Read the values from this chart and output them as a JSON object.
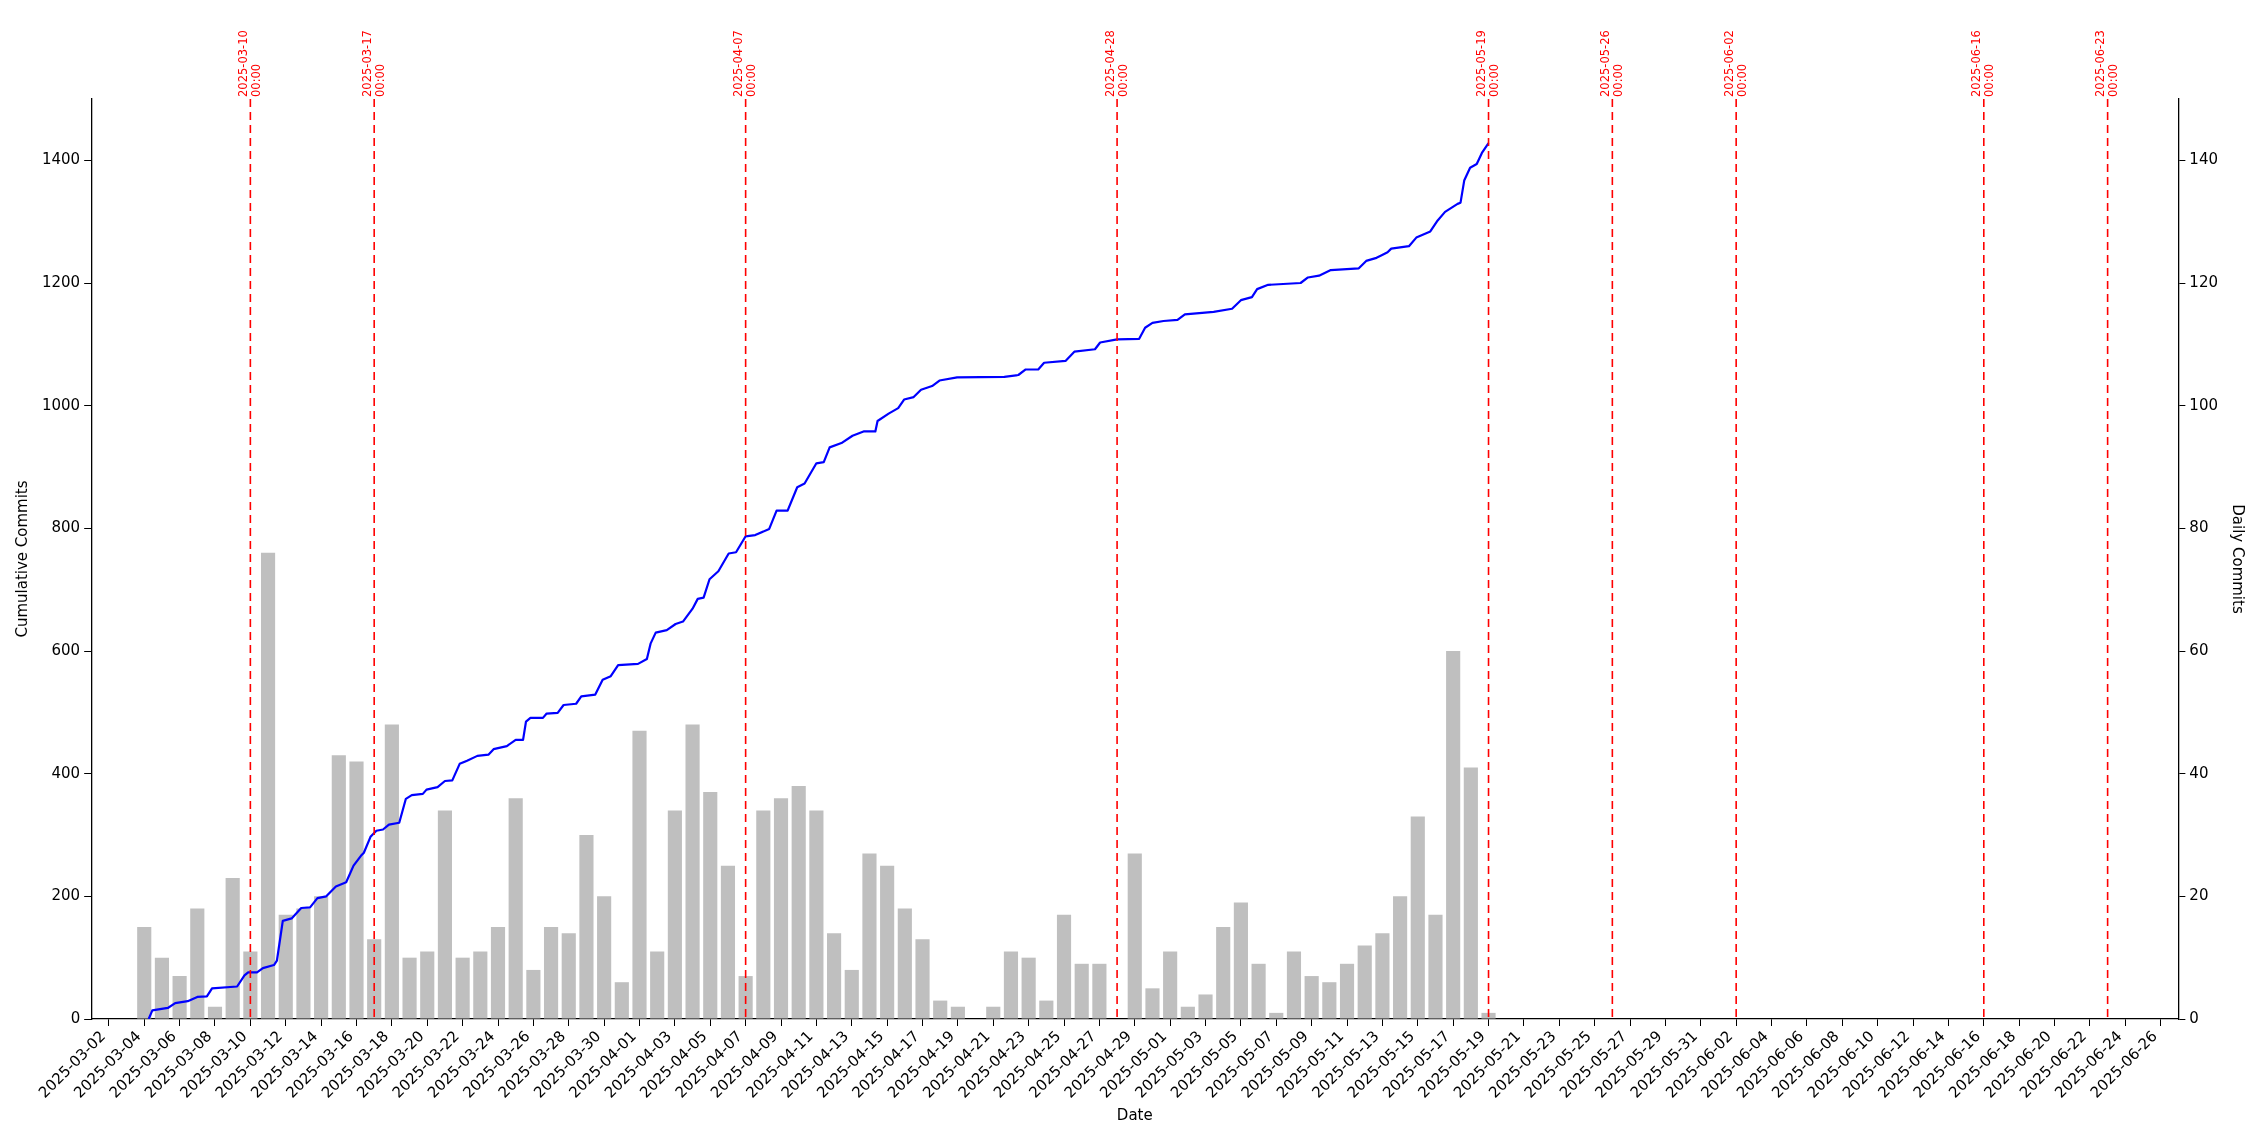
{
  "chart_data": {
    "type": "bar",
    "xlabel": "Date",
    "ylabel": "Cumulative Commits",
    "y2label": "Daily Commits",
    "xlim": [
      "2025-03-01",
      "2025-06-27"
    ],
    "xticks": [
      "2025-03-02",
      "2025-03-04",
      "2025-03-06",
      "2025-03-08",
      "2025-03-10",
      "2025-03-12",
      "2025-03-14",
      "2025-03-16",
      "2025-03-18",
      "2025-03-20",
      "2025-03-22",
      "2025-03-24",
      "2025-03-26",
      "2025-03-28",
      "2025-03-30",
      "2025-04-01",
      "2025-04-03",
      "2025-04-05",
      "2025-04-07",
      "2025-04-09",
      "2025-04-11",
      "2025-04-13",
      "2025-04-15",
      "2025-04-17",
      "2025-04-19",
      "2025-04-21",
      "2025-04-23",
      "2025-04-25",
      "2025-04-27",
      "2025-04-29",
      "2025-05-01",
      "2025-05-03",
      "2025-05-05",
      "2025-05-07",
      "2025-05-09",
      "2025-05-11",
      "2025-05-13",
      "2025-05-15",
      "2025-05-17",
      "2025-05-19",
      "2025-05-21",
      "2025-05-23",
      "2025-05-25",
      "2025-05-27",
      "2025-05-29",
      "2025-05-31",
      "2025-06-02",
      "2025-06-04",
      "2025-06-06",
      "2025-06-08",
      "2025-06-10",
      "2025-06-12",
      "2025-06-14",
      "2025-06-16",
      "2025-06-18",
      "2025-06-20",
      "2025-06-22",
      "2025-06-24",
      "2025-06-26"
    ],
    "ylim": [
      0,
      1500
    ],
    "yticks": [
      0,
      200,
      400,
      600,
      800,
      1000,
      1200,
      1400
    ],
    "y2lim": [
      0,
      150
    ],
    "y2ticks": [
      0,
      20,
      40,
      60,
      80,
      100,
      120,
      140
    ],
    "grid": false,
    "legend": false,
    "series": [
      {
        "axis": "y2",
        "color": "#bfbfbf",
        "x": [
          "2025-03-04",
          "2025-03-05",
          "2025-03-06",
          "2025-03-07",
          "2025-03-08",
          "2025-03-09",
          "2025-03-10",
          "2025-03-11",
          "2025-03-12",
          "2025-03-13",
          "2025-03-14",
          "2025-03-15",
          "2025-03-16",
          "2025-03-17",
          "2025-03-18",
          "2025-03-19",
          "2025-03-20",
          "2025-03-21",
          "2025-03-22",
          "2025-03-23",
          "2025-03-24",
          "2025-03-25",
          "2025-03-26",
          "2025-03-27",
          "2025-03-28",
          "2025-03-29",
          "2025-03-30",
          "2025-03-31",
          "2025-04-01",
          "2025-04-02",
          "2025-04-03",
          "2025-04-04",
          "2025-04-05",
          "2025-04-06",
          "2025-04-07",
          "2025-04-08",
          "2025-04-09",
          "2025-04-10",
          "2025-04-11",
          "2025-04-12",
          "2025-04-13",
          "2025-04-14",
          "2025-04-15",
          "2025-04-16",
          "2025-04-17",
          "2025-04-18",
          "2025-04-19",
          "2025-04-20",
          "2025-04-21",
          "2025-04-22",
          "2025-04-23",
          "2025-04-24",
          "2025-04-25",
          "2025-04-26",
          "2025-04-27",
          "2025-04-28",
          "2025-04-29",
          "2025-04-30",
          "2025-05-01",
          "2025-05-02",
          "2025-05-03",
          "2025-05-04",
          "2025-05-05",
          "2025-05-06",
          "2025-05-07",
          "2025-05-08",
          "2025-05-09",
          "2025-05-10",
          "2025-05-11",
          "2025-05-12",
          "2025-05-13",
          "2025-05-14",
          "2025-05-15",
          "2025-05-16",
          "2025-05-17",
          "2025-05-18",
          "2025-05-19"
        ],
        "values": [
          15,
          10,
          7,
          18,
          2,
          23,
          11,
          76,
          17,
          18,
          20,
          43,
          42,
          13,
          48,
          10,
          11,
          34,
          10,
          11,
          15,
          36,
          8,
          15,
          14,
          30,
          20,
          6,
          47,
          11,
          34,
          48,
          37,
          25,
          7,
          34,
          36,
          38,
          34,
          14,
          8,
          27,
          25,
          18,
          13,
          3,
          2,
          null,
          2,
          11,
          10,
          3,
          17,
          9,
          9,
          null,
          27,
          5,
          11,
          2,
          4,
          15,
          19,
          9,
          1,
          11,
          7,
          6,
          9,
          12,
          14,
          20,
          33,
          17,
          60,
          41,
          1
        ]
      },
      {
        "type": "line",
        "axis": "y",
        "color": "#0000ff",
        "marker": "none",
        "line_style": "solid",
        "x": [
          "2025-03-04T06:00",
          "2025-03-04T11:00",
          "2025-03-05T08:00",
          "2025-03-05T18:00",
          "2025-03-06T11:00",
          "2025-03-07T00:00",
          "2025-03-07T13:00",
          "2025-03-07T20:00",
          "2025-03-09T06:00",
          "2025-03-09T16:00",
          "2025-03-09T21:00",
          "2025-03-10T09:00",
          "2025-03-10T17:00",
          "2025-03-11T08:00",
          "2025-03-11T12:00",
          "2025-03-11T20:00",
          "2025-03-12T08:00",
          "2025-03-12T21:00",
          "2025-03-13T09:00",
          "2025-03-13T19:00",
          "2025-03-14T07:00",
          "2025-03-14T20:00",
          "2025-03-15T10:00",
          "2025-03-15T20:00",
          "2025-03-16T06:00",
          "2025-03-16T10:00",
          "2025-03-16T19:00",
          "2025-03-17T03:00",
          "2025-03-17T12:00",
          "2025-03-17T20:00",
          "2025-03-18T10:00",
          "2025-03-18T19:00",
          "2025-03-19T03:00",
          "2025-03-19T18:00",
          "2025-03-19T23:00",
          "2025-03-20T14:00",
          "2025-03-21T00:00",
          "2025-03-21T10:00",
          "2025-03-21T20:00",
          "2025-03-22T06:00",
          "2025-03-22T20:00",
          "2025-03-23T11:00",
          "2025-03-23T18:00",
          "2025-03-24T12:00",
          "2025-03-25T00:00",
          "2025-03-25T10:00",
          "2025-03-25T14:00",
          "2025-03-25T20:00",
          "2025-03-26T13:00",
          "2025-03-26T18:00",
          "2025-03-27T09:00",
          "2025-03-27T17:00",
          "2025-03-28T10:00",
          "2025-03-28T17:00",
          "2025-03-29T12:00",
          "2025-03-29T22:00",
          "2025-03-30T09:00",
          "2025-03-30T19:00",
          "2025-03-31T22:00",
          "2025-04-01T10:00",
          "2025-04-01T15:00",
          "2025-04-01T22:00",
          "2025-04-02T13:00",
          "2025-04-03T01:00",
          "2025-04-03T11:00",
          "2025-04-04T00:00",
          "2025-04-04T07:00",
          "2025-04-04T15:00",
          "2025-04-04T23:00",
          "2025-04-05T11:00",
          "2025-04-06T01:00",
          "2025-04-06T11:00",
          "2025-04-07T00:00",
          "2025-04-07T13:00",
          "2025-04-08T08:00",
          "2025-04-08T18:00",
          "2025-04-09T09:00",
          "2025-04-09T22:00",
          "2025-04-10T08:00",
          "2025-04-11T00:00",
          "2025-04-11T10:00",
          "2025-04-11T18:00",
          "2025-04-12T10:00",
          "2025-04-13T01:00",
          "2025-04-13T16:00",
          "2025-04-14T08:00",
          "2025-04-14T11:00",
          "2025-04-15T02:00",
          "2025-04-15T15:00",
          "2025-04-15T23:00",
          "2025-04-16T12:00",
          "2025-04-16T22:00",
          "2025-04-17T13:00",
          "2025-04-17T23:00",
          "2025-04-18T23:00",
          "2025-04-21T15:00",
          "2025-04-22T10:00",
          "2025-04-22T20:00",
          "2025-04-23T13:00",
          "2025-04-23T21:00",
          "2025-04-25T02:00",
          "2025-04-25T14:00",
          "2025-04-26T18:00",
          "2025-04-27T01:00",
          "2025-04-28T00:00",
          "2025-04-29T06:00",
          "2025-04-29T14:00",
          "2025-04-30T00:00",
          "2025-04-30T15:00",
          "2025-05-01T10:00",
          "2025-05-01T20:00",
          "2025-05-03T11:00",
          "2025-05-04T12:00",
          "2025-05-05T00:00",
          "2025-05-05T15:00",
          "2025-05-05T22:00",
          "2025-05-06T13:00",
          "2025-05-08T09:00",
          "2025-05-08T19:00",
          "2025-05-09T10:00",
          "2025-05-10T02:00",
          "2025-05-11T16:00",
          "2025-05-12T02:00",
          "2025-05-12T16:00",
          "2025-05-13T07:00",
          "2025-05-13T12:00",
          "2025-05-14T12:00",
          "2025-05-14T22:00",
          "2025-05-15T17:00",
          "2025-05-16T03:00",
          "2025-05-16T13:00",
          "2025-05-17T06:00",
          "2025-05-17T10:00",
          "2025-05-17T15:00",
          "2025-05-17T23:00",
          "2025-05-18T08:00",
          "2025-05-18T15:00",
          "2025-05-19T00:00"
        ],
        "values": [
          0,
          14,
          18,
          26,
          29,
          36,
          37,
          50,
          53,
          71,
          76,
          76,
          83,
          88,
          95,
          160,
          164,
          181,
          182,
          197,
          200,
          216,
          223,
          250,
          266,
          271,
          297,
          307,
          309,
          317,
          320,
          359,
          365,
          367,
          374,
          378,
          388,
          389,
          416,
          421,
          429,
          431,
          440,
          445,
          455,
          455,
          485,
          491,
          491,
          498,
          499,
          512,
          514,
          526,
          529,
          553,
          559,
          577,
          579,
          587,
          612,
          630,
          634,
          644,
          648,
          669,
          685,
          687,
          717,
          730,
          759,
          761,
          787,
          789,
          799,
          829,
          829,
          867,
          873,
          906,
          908,
          932,
          939,
          951,
          958,
          958,
          975,
          987,
          996,
          1010,
          1014,
          1026,
          1032,
          1041,
          1046,
          1047,
          1050,
          1059,
          1059,
          1070,
          1073,
          1088,
          1092,
          1103,
          1108,
          1109,
          1127,
          1135,
          1138,
          1140,
          1149,
          1153,
          1158,
          1172,
          1177,
          1190,
          1197,
          1200,
          1209,
          1212,
          1221,
          1224,
          1236,
          1241,
          1250,
          1256,
          1260,
          1274,
          1284,
          1302,
          1316,
          1329,
          1331,
          1367,
          1388,
          1394,
          1412,
          1428
        ]
      }
    ],
    "ref_lines": [
      {
        "axis": "x",
        "value": "2025-03-10",
        "label": "2025-03-10 00:00",
        "color": "#ff0000",
        "line_style": "dashed"
      },
      {
        "axis": "x",
        "value": "2025-03-17",
        "label": "2025-03-17 00:00",
        "color": "#ff0000",
        "line_style": "dashed"
      },
      {
        "axis": "x",
        "value": "2025-04-07",
        "label": "2025-04-07 00:00",
        "color": "#ff0000",
        "line_style": "dashed"
      },
      {
        "axis": "x",
        "value": "2025-04-28",
        "label": "2025-04-28 00:00",
        "color": "#ff0000",
        "line_style": "dashed"
      },
      {
        "axis": "x",
        "value": "2025-05-19",
        "label": "2025-05-19 00:00",
        "color": "#ff0000",
        "line_style": "dashed"
      },
      {
        "axis": "x",
        "value": "2025-05-26",
        "label": "2025-05-26 00:00",
        "color": "#ff0000",
        "line_style": "dashed"
      },
      {
        "axis": "x",
        "value": "2025-06-02",
        "label": "2025-06-02 00:00",
        "color": "#ff0000",
        "line_style": "dashed"
      },
      {
        "axis": "x",
        "value": "2025-06-16",
        "label": "2025-06-16 00:00",
        "color": "#ff0000",
        "line_style": "dashed"
      },
      {
        "axis": "x",
        "value": "2025-06-23",
        "label": "2025-06-23 00:00",
        "color": "#ff0000",
        "line_style": "dashed"
      }
    ]
  }
}
